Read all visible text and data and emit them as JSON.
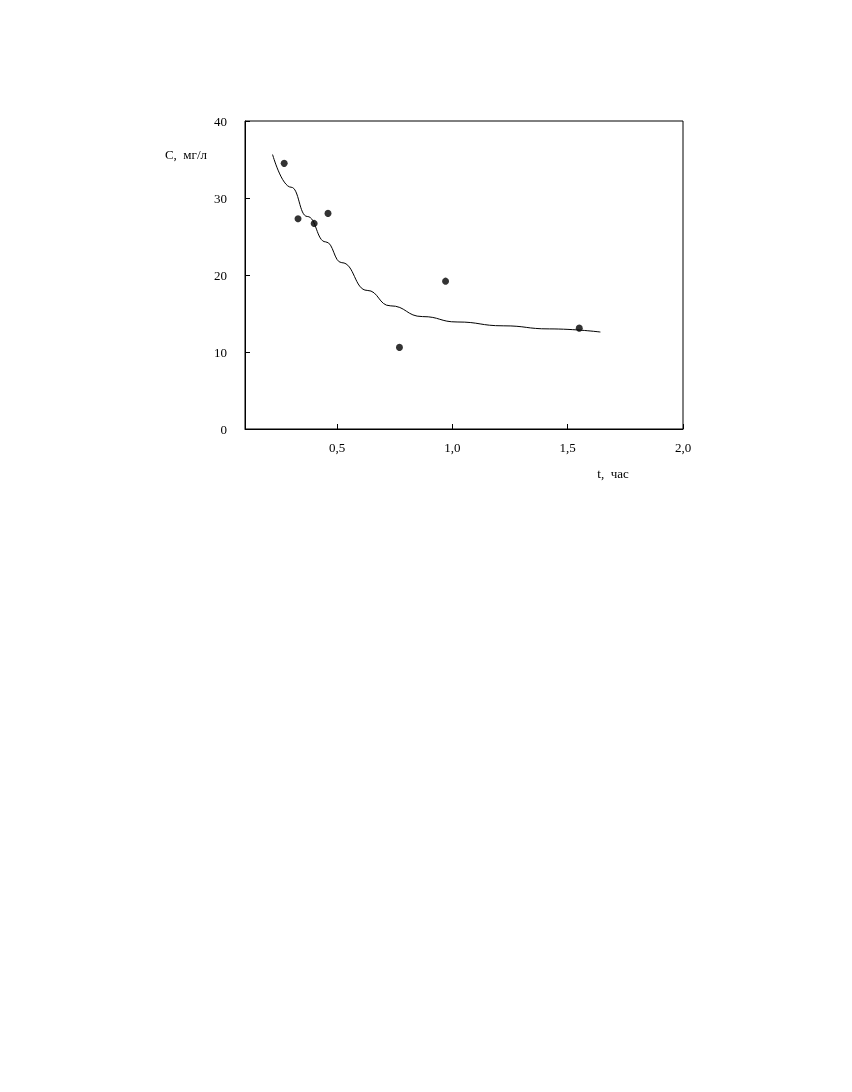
{
  "chart_data": {
    "type": "scatter",
    "xlabel": "t,  час",
    "ylabel": "С,  мг/л",
    "xlim": [
      0.1,
      2.0
    ],
    "ylim": [
      0,
      40
    ],
    "xticks": [
      {
        "value": 0.5,
        "label": "0,5"
      },
      {
        "value": 1.0,
        "label": "1,0"
      },
      {
        "value": 1.5,
        "label": "1,5"
      },
      {
        "value": 2.0,
        "label": "2,0"
      }
    ],
    "yticks": [
      0,
      10,
      20,
      30,
      40
    ],
    "grid": false,
    "marker": "circle",
    "series": [
      {
        "color": "#000000",
        "x": [
          0.27,
          0.33,
          0.4,
          0.46,
          0.77,
          0.97,
          1.55
        ],
        "values": [
          34.5,
          27.3,
          26.7,
          28.0,
          10.6,
          19.2,
          13.1
        ]
      },
      {
        "type": "line",
        "color": "#000000",
        "marker": "none",
        "line_style": "solid",
        "x": [
          0.22,
          0.3,
          0.37,
          0.45,
          0.52,
          0.63,
          0.73,
          0.87,
          1.02,
          1.22,
          1.42,
          1.64
        ],
        "values": [
          35.6,
          31.4,
          27.6,
          24.3,
          21.6,
          18.0,
          16.0,
          14.6,
          13.9,
          13.4,
          13.0,
          12.6
        ]
      }
    ]
  }
}
